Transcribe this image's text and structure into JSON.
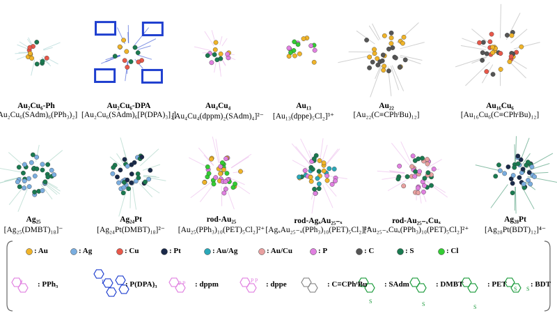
{
  "top_row": [
    {
      "name": "Au₂Cu₆-Ph",
      "formula": "[Au₂Cu₆(SAdm)₆(PPh₃)₂]"
    },
    {
      "name": "Au₂Cu₆-DPA",
      "formula": "[Au₂Cu₆(SAdm)₆[P(DPA)₃]₂]"
    },
    {
      "name": "Au₄Cu₄",
      "formula": "[Au₄Cu₄(dppm)₂(SAdm)₄]²⁻"
    },
    {
      "name": "Au₁₃",
      "formula": "[Au₁₃(dppe)₅Cl₂]³⁺"
    },
    {
      "name": "Au₂₂",
      "formula": "[Au₂₂(C≡CPhᵗBu)₁₂]"
    },
    {
      "name": "Au₁₆Cu₆",
      "formula": "[Au₁₆Cu₆(C≡CPhᵗBu)₁₂]"
    }
  ],
  "bottom_row": [
    {
      "name": "Ag₂₅",
      "formula": "[Ag₂₅(DMBT)₁₈]⁻"
    },
    {
      "name": "Ag₂₄Pt",
      "formula": "[Ag₂₄Pt(DMBT)₁₈]²⁻"
    },
    {
      "name": "rod-Au₂₅",
      "formula": "[Au₂₅(PPh₃)₁₀(PET)₅Cl₂]²⁺"
    },
    {
      "name": "rod-AgₓAu₂₅₋ₓ",
      "formula": "[AgₓAu₂₅₋ₓ(PPh₃)₁₀(PET)₅Cl₂]²⁺"
    },
    {
      "name": "rod-Au₂₅₋ₓCuₓ",
      "formula": "[Au₂₅₋ₓCuₓ(PPh₃)₁₀(PET)₅Cl₂]²⁺"
    },
    {
      "name": "Ag₂₈Pt",
      "formula": "[Ag₂₈Pt(BDT)₁₂]⁴⁻"
    }
  ],
  "atom_legend": [
    ": Au",
    ": Ag",
    ": Cu",
    ": Pt",
    ": Au/Ag",
    ": Au/Cu",
    ": P",
    ": C",
    ": S",
    ": Cl"
  ],
  "ligand_legend": [
    ": PPh₃",
    ": P(DPA)₃",
    ": dppm",
    ": dppe",
    ": C≡CPhᵗBu",
    ": SAdm",
    ": DMBT",
    ": PET",
    ": BDT"
  ],
  "ligand_atom_labels": [
    "P",
    "P",
    "P",
    "P",
    "P",
    "P",
    "S",
    "S",
    "S",
    "S",
    "S"
  ]
}
